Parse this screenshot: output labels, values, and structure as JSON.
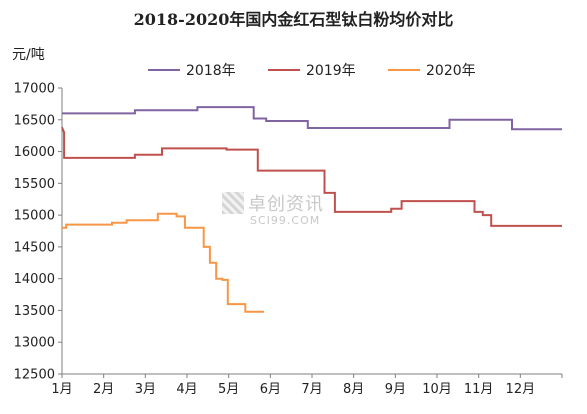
{
  "title": "2018-2020年国内金红石型钛白粉均价对比",
  "unit_label": "元/吨",
  "watermark": {
    "cn": "卓创资讯",
    "en": "SCI99.COM"
  },
  "chart_data": {
    "type": "line",
    "title": "2018-2020年国内金红石型钛白粉均价对比",
    "ylabel": "元/吨",
    "xlabel": "",
    "ylim": [
      12500,
      17000
    ],
    "yticks": [
      12500,
      13000,
      13500,
      14000,
      14500,
      15000,
      15500,
      16000,
      16500,
      17000
    ],
    "xlim": [
      1,
      13
    ],
    "xtick_values": [
      1,
      2,
      3,
      4,
      5,
      6,
      7,
      8,
      9,
      10,
      11,
      12
    ],
    "xtick_labels": [
      "1月",
      "2月",
      "3月",
      "4月",
      "5月",
      "6月",
      "7月",
      "8月",
      "9月",
      "10月",
      "11月",
      "12月"
    ],
    "grid": false,
    "legend_position": "top",
    "series": [
      {
        "name": "2018年",
        "color": "#8064a2",
        "x": [
          1.0,
          2.75,
          2.75,
          4.25,
          4.25,
          5.6,
          5.6,
          5.9,
          5.9,
          6.9,
          6.9,
          10.3,
          10.3,
          11.8,
          11.8,
          13.0
        ],
        "y": [
          16600,
          16600,
          16650,
          16650,
          16700,
          16700,
          16520,
          16520,
          16480,
          16480,
          16370,
          16370,
          16500,
          16500,
          16350,
          16350
        ]
      },
      {
        "name": "2019年",
        "color": "#c0504d",
        "x": [
          1.0,
          1.05,
          1.05,
          2.75,
          2.75,
          3.4,
          3.4,
          4.95,
          4.95,
          5.7,
          5.7,
          7.3,
          7.3,
          7.55,
          7.55,
          8.9,
          8.9,
          9.15,
          9.15,
          10.9,
          10.9,
          11.1,
          11.1,
          11.3,
          11.3,
          13.0
        ],
        "y": [
          16380,
          16300,
          15900,
          15900,
          15950,
          15950,
          16050,
          16050,
          16030,
          16030,
          15700,
          15700,
          15350,
          15350,
          15050,
          15050,
          15100,
          15100,
          15220,
          15220,
          15050,
          15050,
          15000,
          15000,
          14830,
          14830
        ]
      },
      {
        "name": "2020年",
        "color": "#f79646",
        "x": [
          1.0,
          1.1,
          1.1,
          2.2,
          2.2,
          2.55,
          2.55,
          3.3,
          3.3,
          3.75,
          3.75,
          3.95,
          3.95,
          4.4,
          4.4,
          4.55,
          4.55,
          4.7,
          4.7,
          4.85,
          4.85,
          4.98,
          4.98,
          5.4,
          5.4,
          5.85
        ],
        "y": [
          14800,
          14800,
          14850,
          14850,
          14880,
          14880,
          14920,
          14920,
          15020,
          15020,
          14980,
          14980,
          14800,
          14800,
          14500,
          14500,
          14250,
          14250,
          14000,
          14000,
          13980,
          13980,
          13600,
          13600,
          13480,
          13480
        ]
      }
    ]
  }
}
